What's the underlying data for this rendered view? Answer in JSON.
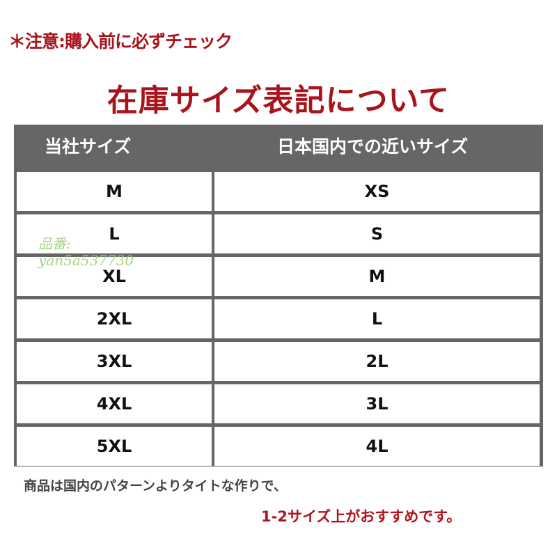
{
  "notice": "＊注意:購入前に必ずチェック",
  "title": "在庫サイズ表記について",
  "table": {
    "headers": [
      "当社サイズ",
      "日本国内での近いサイズ"
    ],
    "rows": [
      [
        "M",
        "XS"
      ],
      [
        "L",
        "S"
      ],
      [
        "XL",
        "M"
      ],
      [
        "2XL",
        "L"
      ],
      [
        "3XL",
        "2L"
      ],
      [
        "4XL",
        "3L"
      ],
      [
        "5XL",
        "4L"
      ]
    ]
  },
  "watermark": {
    "line1": "品番:",
    "line2": "yan5a537730"
  },
  "footer": {
    "note": "商品は国内のパターンよりタイトな作りで、",
    "recommend": "1-2サイズ上がおすすめです。"
  },
  "colors": {
    "accent": "#a8141c",
    "header_bg": "#666666"
  }
}
